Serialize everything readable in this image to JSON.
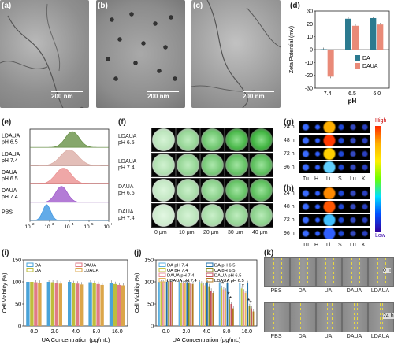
{
  "panels": {
    "a": "(a)",
    "b": "(b)",
    "c": "(c)",
    "d": "(d)",
    "e": "(e)",
    "f": "(f)",
    "g": "(g)",
    "h": "(h)",
    "i": "(i)",
    "j": "(j)",
    "k": "(k)"
  },
  "tem": {
    "scale_a": "200 nm",
    "scale_b": "200 nm",
    "scale_c": "200 nm"
  },
  "chart_data": [
    {
      "id": "d",
      "type": "bar",
      "categories": [
        "7.4",
        "6.5",
        "6.0"
      ],
      "series": [
        {
          "name": "DA",
          "values": [
            0.3,
            24,
            24.5
          ],
          "color": "#2c7a8f"
        },
        {
          "name": "DAUA",
          "values": [
            -21,
            18.5,
            19.5
          ],
          "color": "#e98a78"
        }
      ],
      "xlabel": "pH",
      "ylabel": "Zeta Potential (mV)",
      "ylim": [
        -30,
        30
      ],
      "yticks": [
        "-30",
        "-20",
        "-10",
        "0",
        "10",
        "20",
        "30"
      ]
    },
    {
      "id": "e",
      "type": "area",
      "rows": [
        {
          "label": [
            "LDAUA",
            "pH 6.5"
          ],
          "peak": 4.15,
          "width": 0.35,
          "color": "#5d8a3a"
        },
        {
          "label": [
            "LDAUA",
            "pH 7.4"
          ],
          "peak": 4.0,
          "width": 0.45,
          "color": "#d9a8a0"
        },
        {
          "label": [
            "DAUA",
            "pH 6.5"
          ],
          "peak": 3.7,
          "width": 0.4,
          "color": "#e98a8a"
        },
        {
          "label": [
            "DAUA",
            "pH 7.4"
          ],
          "peak": 3.6,
          "width": 0.3,
          "color": "#9a4fc8"
        },
        {
          "label": [
            "PBS"
          ],
          "peak": 2.85,
          "width": 0.2,
          "color": "#2f8fe0"
        }
      ],
      "xticks": [
        "10",
        "10",
        "10",
        "10",
        "10"
      ],
      "xticks_exp": [
        "2",
        "3",
        "4",
        "5",
        "6"
      ]
    },
    {
      "id": "i",
      "type": "bar",
      "categories": [
        "0.0",
        "2.0",
        "4.0",
        "8.0",
        "16.0"
      ],
      "series": [
        {
          "name": "DA",
          "values": [
            100,
            100,
            100,
            99,
            98
          ],
          "color": "#4aa3d8"
        },
        {
          "name": "UA",
          "values": [
            100,
            99,
            97,
            97,
            95
          ],
          "color": "#bdbd3c"
        },
        {
          "name": "DAUA",
          "values": [
            99,
            98,
            96,
            95,
            93
          ],
          "color": "#e07a86"
        },
        {
          "name": "LDAUA",
          "values": [
            98,
            96,
            94,
            93,
            92
          ],
          "color": "#dba64a"
        }
      ],
      "xlabel": "UA Concentration (μg/mL)",
      "ylabel": "Cell Viability (%)",
      "ylim": [
        0,
        150
      ],
      "yticks": [
        "0",
        "50",
        "100",
        "150"
      ]
    },
    {
      "id": "j",
      "type": "bar",
      "categories": [
        "0.0",
        "2.0",
        "4.0",
        "8.0",
        "16.0"
      ],
      "series": [
        {
          "name": "DA pH 7.4",
          "values": [
            100,
            100,
            100,
            99,
            98
          ],
          "color": "#5bb0e0"
        },
        {
          "name": "UA pH 7.4",
          "values": [
            100,
            98,
            96,
            86,
            85
          ],
          "color": "#c4c640"
        },
        {
          "name": "DAUA pH 7.4",
          "values": [
            100,
            97,
            93,
            83,
            78
          ],
          "color": "#e8909c"
        },
        {
          "name": "LDAUA pH 7.4",
          "values": [
            100,
            97,
            92,
            80,
            75
          ],
          "color": "#e4b55c"
        },
        {
          "name": "DA pH 6.5",
          "values": [
            100,
            99,
            99,
            98,
            97
          ],
          "color": "#1f6fa8"
        },
        {
          "name": "UA pH 6.5",
          "values": [
            100,
            97,
            90,
            60,
            45
          ],
          "color": "#8a8a20"
        },
        {
          "name": "DAUA pH 6.5",
          "values": [
            100,
            96,
            80,
            50,
            40
          ],
          "color": "#c0505e"
        },
        {
          "name": "LDAUA pH 6.5",
          "values": [
            100,
            95,
            75,
            40,
            33
          ],
          "color": "#b07a20"
        }
      ],
      "xlabel": "UA Concentration (μg/mL)",
      "ylabel": "Cell Viability (%)",
      "ylim": [
        0,
        150
      ],
      "yticks": [
        "0",
        "50",
        "100",
        "150"
      ],
      "annotations": [
        "*",
        "*",
        "*",
        "*",
        "*",
        "*"
      ]
    }
  ],
  "spheroid": {
    "rows": [
      [
        "LDAUA",
        "pH 6.5"
      ],
      [
        "LDAUA",
        "pH 7.4"
      ],
      [
        "DAUA",
        "pH 6.5"
      ],
      [
        "DAUA",
        "pH 7.4"
      ]
    ],
    "depths": [
      "0 μm",
      "10 μm",
      "20 μm",
      "30 μm",
      "40 μm"
    ],
    "intensity": [
      [
        0.35,
        0.55,
        0.75,
        0.95,
        1.0
      ],
      [
        0.4,
        0.55,
        0.7,
        0.8,
        0.85
      ],
      [
        0.3,
        0.45,
        0.6,
        0.8,
        0.85
      ],
      [
        0.25,
        0.35,
        0.45,
        0.55,
        0.6
      ]
    ]
  },
  "ivis": {
    "times": [
      "24 h",
      "48 h",
      "72 h",
      "96 h"
    ],
    "organs": [
      "Tu",
      "H",
      "Li",
      "S",
      "Lu",
      "K"
    ],
    "scale_high": "High",
    "scale_low": "Low"
  },
  "wound": {
    "groups": [
      "PBS",
      "DA",
      "UA",
      "DAUA",
      "LDAUA"
    ],
    "times": [
      "0 h",
      "24 h"
    ]
  }
}
